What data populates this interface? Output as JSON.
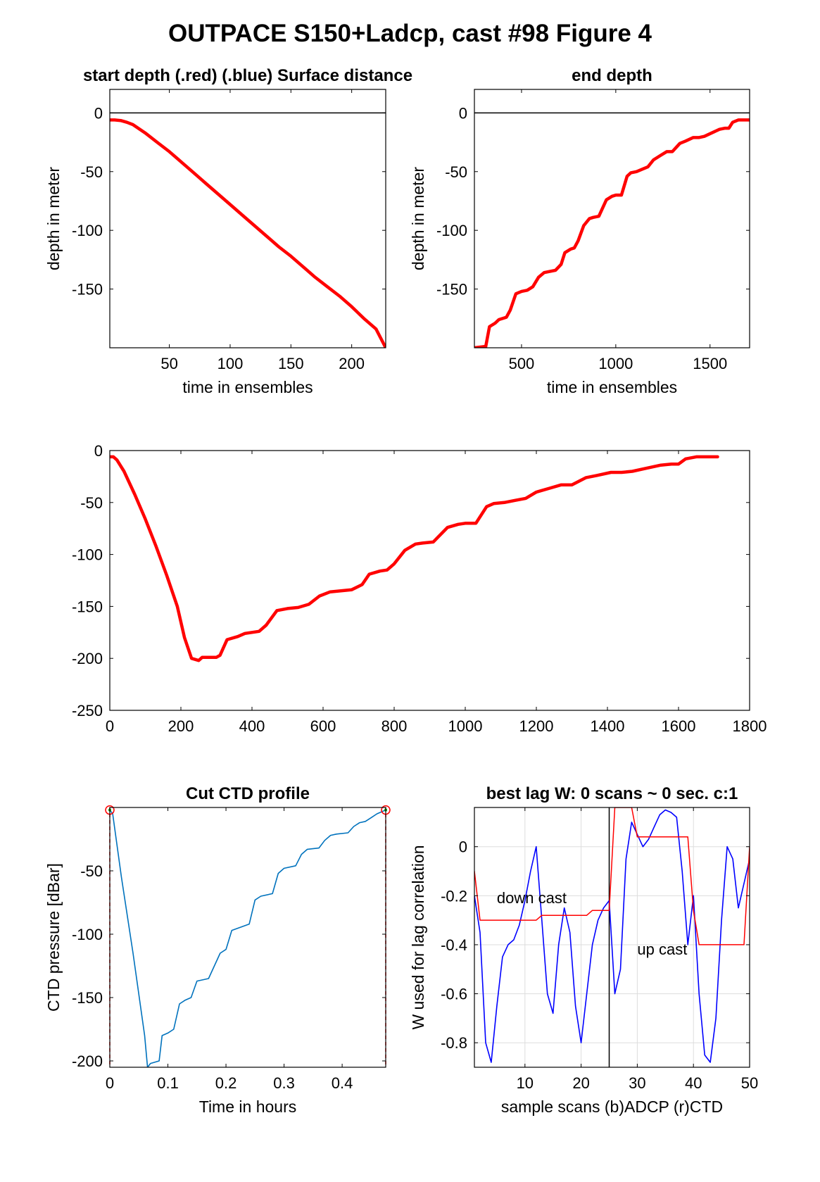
{
  "figure": {
    "title": "OUTPACE S150+Ladcp, cast #98    Figure 4"
  },
  "colors": {
    "red": "#ff0000",
    "blue": "#0000ff",
    "ctd_blue": "#0072bd",
    "green": "#00aa00",
    "grid": "#dddddd",
    "black": "#000000"
  },
  "chart_data": [
    {
      "id": "start-depth",
      "type": "line",
      "title": "start depth (.red) (.blue) Surface distance",
      "xlabel": "time in ensembles",
      "ylabel": "depth in meter",
      "xlim": [
        1,
        228
      ],
      "ylim": [
        -200,
        20
      ],
      "xticks": [
        50,
        100,
        150,
        200
      ],
      "yticks": [
        0,
        -50,
        -100,
        -150
      ],
      "grid": false,
      "zero_line": true,
      "series": [
        {
          "color": "red",
          "x": [
            1,
            5,
            10,
            15,
            20,
            30,
            40,
            50,
            60,
            70,
            80,
            90,
            100,
            110,
            120,
            130,
            140,
            150,
            160,
            170,
            180,
            190,
            200,
            210,
            220,
            228
          ],
          "y": [
            -6,
            -6,
            -6.5,
            -8,
            -10,
            -17,
            -25,
            -33,
            -42,
            -51,
            -60,
            -69,
            -78,
            -87,
            -96,
            -105,
            -114,
            -122,
            -131,
            -140,
            -148,
            -156,
            -165,
            -175,
            -184,
            -200
          ]
        }
      ]
    },
    {
      "id": "end-depth",
      "type": "line",
      "title": "end depth",
      "xlabel": "time in ensembles",
      "ylabel": "depth in meter",
      "xlim": [
        250,
        1710
      ],
      "ylim": [
        -200,
        20
      ],
      "xticks": [
        500,
        1000,
        1500
      ],
      "yticks": [
        0,
        -50,
        -100,
        -150
      ],
      "grid": false,
      "zero_line": true,
      "series": [
        {
          "color": "red",
          "x": [
            250,
            300,
            310,
            330,
            360,
            380,
            420,
            440,
            470,
            500,
            530,
            560,
            590,
            620,
            650,
            680,
            710,
            730,
            760,
            780,
            800,
            830,
            860,
            880,
            910,
            950,
            980,
            1000,
            1030,
            1060,
            1080,
            1110,
            1140,
            1170,
            1200,
            1240,
            1270,
            1300,
            1340,
            1370,
            1410,
            1440,
            1470,
            1510,
            1550,
            1580,
            1600,
            1620,
            1650,
            1690,
            1710
          ],
          "y": [
            -200,
            -199,
            -199,
            -182,
            -179,
            -176,
            -174,
            -168,
            -154,
            -152,
            -151,
            -148,
            -140,
            -136,
            -135,
            -134,
            -129,
            -119,
            -116,
            -115,
            -109,
            -96,
            -90,
            -89,
            -88,
            -74,
            -71,
            -70,
            -70,
            -54,
            -51,
            -50,
            -48,
            -46,
            -40,
            -36,
            -33,
            -33,
            -26,
            -24,
            -21,
            -21,
            -20,
            -17,
            -14,
            -13,
            -13,
            -8,
            -6,
            -6,
            -6
          ]
        }
      ]
    },
    {
      "id": "full-profile",
      "type": "line",
      "title": "",
      "xlabel": "",
      "ylabel": "",
      "xlim": [
        0,
        1800
      ],
      "ylim": [
        -250,
        0
      ],
      "xticks": [
        0,
        200,
        400,
        600,
        800,
        1000,
        1200,
        1400,
        1600,
        1800
      ],
      "yticks": [
        0,
        -50,
        -100,
        -150,
        -200,
        -250
      ],
      "grid": false,
      "zero_line": false,
      "series": [
        {
          "color": "red",
          "x": [
            0,
            10,
            20,
            40,
            70,
            100,
            130,
            160,
            190,
            210,
            230,
            250,
            260,
            280,
            300,
            310,
            330,
            360,
            380,
            420,
            440,
            470,
            500,
            530,
            560,
            590,
            620,
            650,
            680,
            710,
            730,
            760,
            780,
            800,
            830,
            860,
            880,
            910,
            950,
            980,
            1000,
            1030,
            1060,
            1080,
            1110,
            1140,
            1170,
            1200,
            1240,
            1270,
            1300,
            1340,
            1370,
            1410,
            1440,
            1470,
            1510,
            1550,
            1580,
            1600,
            1620,
            1650,
            1690,
            1710
          ],
          "y": [
            -6,
            -6,
            -9,
            -20,
            -42,
            -66,
            -92,
            -120,
            -150,
            -180,
            -200,
            -202,
            -199,
            -199,
            -199,
            -197,
            -182,
            -179,
            -176,
            -174,
            -168,
            -154,
            -152,
            -151,
            -148,
            -140,
            -136,
            -135,
            -134,
            -129,
            -119,
            -116,
            -115,
            -109,
            -96,
            -90,
            -89,
            -88,
            -74,
            -71,
            -70,
            -70,
            -54,
            -51,
            -50,
            -48,
            -46,
            -40,
            -36,
            -33,
            -33,
            -26,
            -24,
            -21,
            -21,
            -20,
            -17,
            -14,
            -13,
            -13,
            -8,
            -6,
            -6,
            -6
          ]
        }
      ]
    },
    {
      "id": "cut-ctd",
      "type": "line",
      "title": "Cut CTD profile",
      "xlabel": "Time in hours",
      "ylabel": "CTD pressure [dBar]",
      "xlim": [
        0,
        0.475
      ],
      "ylim": [
        -205,
        0
      ],
      "xticks": [
        0,
        0.1,
        0.2,
        0.3,
        0.4
      ],
      "yticks": [
        -50,
        -100,
        -150,
        -200
      ],
      "grid": false,
      "zero_line": false,
      "series": [
        {
          "color": "ctd_blue",
          "x": [
            0,
            0.005,
            0.02,
            0.04,
            0.06,
            0.065,
            0.07,
            0.085,
            0.09,
            0.1,
            0.11,
            0.12,
            0.13,
            0.14,
            0.15,
            0.17,
            0.19,
            0.2,
            0.21,
            0.24,
            0.25,
            0.26,
            0.28,
            0.29,
            0.3,
            0.32,
            0.33,
            0.34,
            0.36,
            0.37,
            0.38,
            0.39,
            0.41,
            0.42,
            0.43,
            0.44,
            0.45,
            0.46,
            0.47,
            0.475
          ],
          "y": [
            -2,
            -5,
            -55,
            -115,
            -180,
            -205,
            -202,
            -200,
            -180,
            -178,
            -175,
            -155,
            -152,
            -150,
            -137,
            -135,
            -115,
            -112,
            -97,
            -92,
            -73,
            -70,
            -68,
            -52,
            -48,
            -46,
            -37,
            -33,
            -32,
            -26,
            -22,
            -21,
            -20,
            -15,
            -12,
            -11,
            -8,
            -5,
            -3,
            -2
          ]
        }
      ],
      "markers": [
        {
          "x": 0,
          "y": -2,
          "color": "red"
        },
        {
          "x": 0.475,
          "y": -2,
          "color": "red"
        }
      ]
    },
    {
      "id": "best-lag",
      "type": "line",
      "title": "best lag W: 0 scans ~ 0 sec.  c:1",
      "xlabel": "sample scans (b)ADCP (r)CTD",
      "ylabel": "W used for lag correlation",
      "xlim": [
        1,
        50
      ],
      "ylim": [
        -0.9,
        0.16
      ],
      "xticks": [
        10,
        20,
        30,
        40,
        50
      ],
      "yticks": [
        0,
        -0.2,
        -0.4,
        -0.6,
        -0.8
      ],
      "grid": true,
      "zero_line": false,
      "divider_x": 25,
      "annotations": [
        {
          "text": "down cast",
          "x": 5,
          "y": -0.23
        },
        {
          "text": "up cast",
          "x": 30,
          "y": -0.44
        }
      ],
      "series": [
        {
          "color": "blue",
          "x": [
            1,
            2,
            3,
            4,
            5,
            6,
            7,
            8,
            9,
            10,
            11,
            12,
            13,
            14,
            15,
            16,
            17,
            18,
            19,
            20,
            21,
            22,
            23,
            24,
            25,
            26,
            27,
            28,
            29,
            30,
            31,
            32,
            33,
            34,
            35,
            36,
            37,
            38,
            39,
            40,
            41,
            42,
            43,
            44,
            45,
            46,
            47,
            48,
            49,
            50
          ],
          "y": [
            -0.2,
            -0.35,
            -0.8,
            -0.88,
            -0.65,
            -0.45,
            -0.4,
            -0.38,
            -0.32,
            -0.22,
            -0.1,
            0,
            -0.3,
            -0.6,
            -0.68,
            -0.4,
            -0.25,
            -0.35,
            -0.65,
            -0.8,
            -0.6,
            -0.4,
            -0.3,
            -0.25,
            -0.22,
            -0.6,
            -0.5,
            -0.05,
            0.1,
            0.05,
            0.0,
            0.03,
            0.08,
            0.13,
            0.15,
            0.14,
            0.12,
            -0.1,
            -0.4,
            -0.2,
            -0.6,
            -0.85,
            -0.88,
            -0.7,
            -0.3,
            0.0,
            -0.05,
            -0.25,
            -0.15,
            -0.05
          ]
        },
        {
          "color": "red",
          "x": [
            1,
            2,
            3,
            4,
            5,
            6,
            7,
            8,
            9,
            10,
            11,
            12,
            13,
            14,
            15,
            16,
            17,
            18,
            19,
            20,
            21,
            22,
            23,
            24,
            25,
            26,
            27,
            28,
            29,
            30,
            31,
            32,
            33,
            34,
            35,
            36,
            37,
            38,
            39,
            40,
            41,
            42,
            43,
            44,
            45,
            46,
            47,
            48,
            49,
            50
          ],
          "y": [
            -0.1,
            -0.3,
            -0.3,
            -0.3,
            -0.3,
            -0.3,
            -0.3,
            -0.3,
            -0.3,
            -0.3,
            -0.3,
            -0.3,
            -0.28,
            -0.28,
            -0.28,
            -0.28,
            -0.28,
            -0.28,
            -0.28,
            -0.28,
            -0.28,
            -0.26,
            -0.26,
            -0.26,
            -0.26,
            0.16,
            0.16,
            0.16,
            0.16,
            0.04,
            0.04,
            0.04,
            0.04,
            0.04,
            0.04,
            0.04,
            0.04,
            0.04,
            0.04,
            -0.26,
            -0.4,
            -0.4,
            -0.4,
            -0.4,
            -0.4,
            -0.4,
            -0.4,
            -0.4,
            -0.4,
            0.0
          ]
        }
      ]
    }
  ]
}
